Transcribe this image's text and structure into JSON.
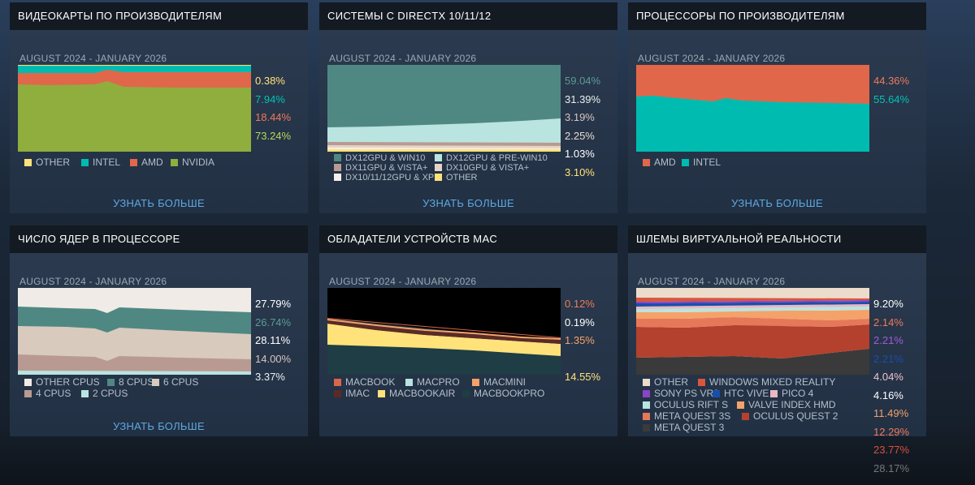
{
  "cards": [
    {
      "title": "ВИДЕОКАРТЫ ПО ПРОИЗВОДИТЕЛЯМ",
      "period": "AUGUST 2024 - JANUARY 2026",
      "more": "УЗНАТЬ БОЛЬШЕ",
      "percents": [
        {
          "text": "0.38%",
          "color": "#ffe27a"
        },
        {
          "text": "7.94%",
          "color": "#00c4b4"
        },
        {
          "text": "18.44%",
          "color": "#ef7a5a"
        },
        {
          "text": "73.24%",
          "color": "#b7d65c"
        }
      ],
      "legend": [
        {
          "label": "OTHER",
          "color": "#ffe27a"
        },
        {
          "label": "INTEL",
          "color": "#00bcb0"
        },
        {
          "label": "AMD",
          "color": "#e0674a"
        },
        {
          "label": "NVIDIA",
          "color": "#8fae3e"
        }
      ]
    },
    {
      "title": "СИСТЕМЫ С DIRECTX 10/11/12",
      "period": "AUGUST 2024 - JANUARY 2026",
      "more": "УЗНАТЬ БОЛЬШЕ",
      "percents": [
        {
          "text": "59.04%",
          "color": "#5a9c97"
        },
        {
          "text": "31.39%",
          "color": "#e8f0f0"
        },
        {
          "text": "3.19%",
          "color": "#d8c6c0"
        },
        {
          "text": "2.25%",
          "color": "#e8dcd2"
        },
        {
          "text": "1.03%",
          "color": "#ffffff"
        },
        {
          "text": "3.10%",
          "color": "#ffe27a"
        }
      ],
      "legend": [
        {
          "label": "DX12GPU & WIN10",
          "color": "#4f8882"
        },
        {
          "label": "DX12GPU & PRE-WIN10",
          "color": "#b9e4e0"
        },
        {
          "label": "DX11GPU & VISTA+",
          "color": "#b99a92"
        },
        {
          "label": "DX10GPU & VISTA+",
          "color": "#e4d4c8"
        },
        {
          "label": "DX10/11/12GPU & XP",
          "color": "#f5f1ea"
        },
        {
          "label": "OTHER",
          "color": "#ffe27a"
        }
      ]
    },
    {
      "title": "ПРОЦЕССОРЫ ПО ПРОИЗВОДИТЕЛЯМ",
      "period": "AUGUST 2024 - JANUARY 2026",
      "more": "УЗНАТЬ БОЛЬШЕ",
      "percents": [
        {
          "text": "44.36%",
          "color": "#ef7a5a"
        },
        {
          "text": "55.64%",
          "color": "#00c4b4"
        }
      ],
      "legend": [
        {
          "label": "AMD",
          "color": "#e0674a"
        },
        {
          "label": "INTEL",
          "color": "#00bcb0"
        }
      ]
    },
    {
      "title": "ЧИСЛО ЯДЕР В ПРОЦЕССОРЕ",
      "period": "AUGUST 2024 - JANUARY 2026",
      "more": "УЗНАТЬ БОЛЬШЕ",
      "percents": [
        {
          "text": "27.79%",
          "color": "#ffffff"
        },
        {
          "text": "26.74%",
          "color": "#5a9c97"
        },
        {
          "text": "28.11%",
          "color": "#ffffff"
        },
        {
          "text": "14.00%",
          "color": "#d8c6c0"
        },
        {
          "text": "3.37%",
          "color": "#e8f0f0"
        }
      ],
      "legend": [
        {
          "label": "OTHER CPUS",
          "color": "#f0ebe6"
        },
        {
          "label": "8 CPUS",
          "color": "#4f8882"
        },
        {
          "label": "6 CPUS",
          "color": "#d8cabd"
        },
        {
          "label": "4 CPUS",
          "color": "#b99a92"
        },
        {
          "label": "2 CPUS",
          "color": "#b9e4e0"
        }
      ]
    },
    {
      "title": "ОБЛАДАТЕЛИ УСТРОЙСТВ MAC",
      "period": "AUGUST 2024 - JANUARY 2026",
      "more": "",
      "percents": [
        {
          "text": "0.12%",
          "color": "#ef7a5a"
        },
        {
          "text": "0.19%",
          "color": "#ffffff"
        },
        {
          "text": "1.35%",
          "color": "#f4a26a"
        },
        {
          "text": "",
          "color": "#6b2a24"
        },
        {
          "text": "14.55%",
          "color": "#ffe27a"
        },
        {
          "text": "",
          "color": "#1f4a4a"
        }
      ],
      "legend": [
        {
          "label": "MACBOOK",
          "color": "#d9674a"
        },
        {
          "label": "MACPRO",
          "color": "#b9e4e0"
        },
        {
          "label": "MACMINI",
          "color": "#f4a26a"
        },
        {
          "label": "IMAC",
          "color": "#5a2b26"
        },
        {
          "label": "MACBOOKAIR",
          "color": "#ffe27a"
        },
        {
          "label": "MACBOOKPRO",
          "color": "#1e3d44"
        }
      ]
    },
    {
      "title": "ШЛЕМЫ ВИРТУАЛЬНОЙ РЕАЛЬНОСТИ",
      "period": "AUGUST 2024 - JANUARY 2026",
      "more": "",
      "percents": [
        {
          "text": "9.20%",
          "color": "#ffffff"
        },
        {
          "text": "2.14%",
          "color": "#ef7a5a"
        },
        {
          "text": "2.21%",
          "color": "#a05cd8"
        },
        {
          "text": "2.21%",
          "color": "#1a4fa8"
        },
        {
          "text": "4.04%",
          "color": "#ecc4cc"
        },
        {
          "text": "4.16%",
          "color": "#ffffff"
        },
        {
          "text": "11.49%",
          "color": "#f4a26a"
        },
        {
          "text": "12.29%",
          "color": "#ef7a5a"
        },
        {
          "text": "23.77%",
          "color": "#d8513c"
        },
        {
          "text": "28.17%",
          "color": "#777777"
        }
      ],
      "legend": [
        {
          "label": "OTHER",
          "color": "#ecdccc"
        },
        {
          "label": "WINDOWS MIXED REALITY",
          "color": "#d9563c"
        },
        {
          "label": "SONY PS VR2",
          "color": "#8a44c8"
        },
        {
          "label": "HTC VIVE",
          "color": "#1a4fa8"
        },
        {
          "label": "PICO 4",
          "color": "#e8b8c4"
        },
        {
          "label": "OCULUS RIFT S",
          "color": "#b9e4e0"
        },
        {
          "label": "VALVE INDEX HMD",
          "color": "#f4a26a"
        },
        {
          "label": "META QUEST 3S",
          "color": "#e6785a"
        },
        {
          "label": "OCULUS QUEST 2",
          "color": "#b3412e"
        },
        {
          "label": "META QUEST 3",
          "color": "#3a3a3a"
        }
      ]
    }
  ]
}
